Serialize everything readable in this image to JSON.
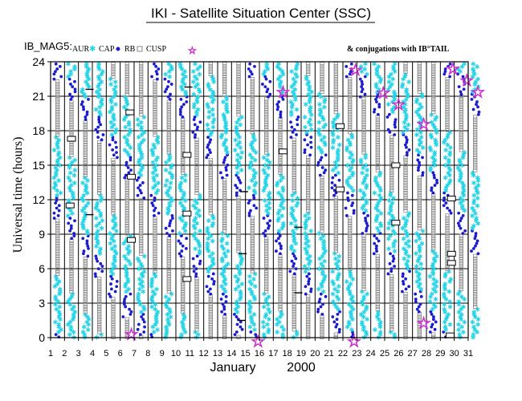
{
  "title": "IKI - Satellite Situation Center (SSC)",
  "legend": {
    "prefix": "IB_MAG5:",
    "items": [
      "AUR",
      "CAP",
      "RB",
      "CUSP"
    ],
    "conjugations": "& conjugations with IB°TAIL"
  },
  "colors": {
    "aur": "#22d3e6",
    "cap": "#1c1ccc",
    "rb": "#888888",
    "cusp": "#cc33cc"
  },
  "chart_data": {
    "type": "scatter",
    "title": "IKI - Satellite Situation Center (SSC)",
    "xlabel": "January",
    "xlabel_year": "2000",
    "ylabel": "Universal time (hours)",
    "xlim": [
      1,
      31
    ],
    "ylim": [
      0,
      24
    ],
    "x_ticks": [
      1,
      2,
      3,
      4,
      5,
      6,
      7,
      8,
      9,
      10,
      11,
      12,
      13,
      14,
      15,
      16,
      17,
      18,
      19,
      20,
      21,
      22,
      23,
      24,
      25,
      26,
      27,
      28,
      29,
      30,
      31
    ],
    "y_ticks": [
      0,
      3,
      6,
      9,
      12,
      15,
      18,
      21,
      24
    ],
    "grid": true,
    "cusp_conjugations": [
      {
        "day": 6.8,
        "ut": 0.3
      },
      {
        "day": 15.9,
        "ut": -0.3
      },
      {
        "day": 17.7,
        "ut": 21.4
      },
      {
        "day": 22.8,
        "ut": -0.3
      },
      {
        "day": 22.9,
        "ut": 23.3
      },
      {
        "day": 24.9,
        "ut": 21.3
      },
      {
        "day": 26.0,
        "ut": 20.3
      },
      {
        "day": 27.8,
        "ut": 18.6
      },
      {
        "day": 27.8,
        "ut": 1.3
      },
      {
        "day": 29.9,
        "ut": 23.4
      },
      {
        "day": 30.9,
        "ut": 22.4
      },
      {
        "day": 31.7,
        "ut": 21.4
      }
    ],
    "conjugation_boxes": [
      {
        "day": 2.5,
        "ut": 17.3
      },
      {
        "day": 2.4,
        "ut": 11.5
      },
      {
        "day": 6.7,
        "ut": 19.6
      },
      {
        "day": 6.8,
        "ut": 14.0
      },
      {
        "day": 6.8,
        "ut": 8.5
      },
      {
        "day": 10.8,
        "ut": 15.9
      },
      {
        "day": 10.8,
        "ut": 10.8
      },
      {
        "day": 10.8,
        "ut": 5.1
      },
      {
        "day": 17.7,
        "ut": 16.2
      },
      {
        "day": 21.8,
        "ut": 18.4
      },
      {
        "day": 21.8,
        "ut": 12.9
      },
      {
        "day": 25.8,
        "ut": 15.0
      },
      {
        "day": 25.8,
        "ut": 10.0
      },
      {
        "day": 29.8,
        "ut": 12.1
      },
      {
        "day": 29.8,
        "ut": 7.3
      },
      {
        "day": 29.8,
        "ut": 6.5
      },
      {
        "day": 29.7,
        "ut": 0.2
      }
    ],
    "conjugation_marks": [
      {
        "day": 3.8,
        "ut": 10.7
      },
      {
        "day": 3.8,
        "ut": 21.6
      },
      {
        "day": 14.9,
        "ut": 12.7
      },
      {
        "day": 14.8,
        "ut": 7.3
      },
      {
        "day": 14.7,
        "ut": 1.5
      },
      {
        "day": 18.8,
        "ut": 9.6
      },
      {
        "day": 18.8,
        "ut": 3.9
      },
      {
        "day": 10.9,
        "ut": 21.8
      }
    ]
  }
}
